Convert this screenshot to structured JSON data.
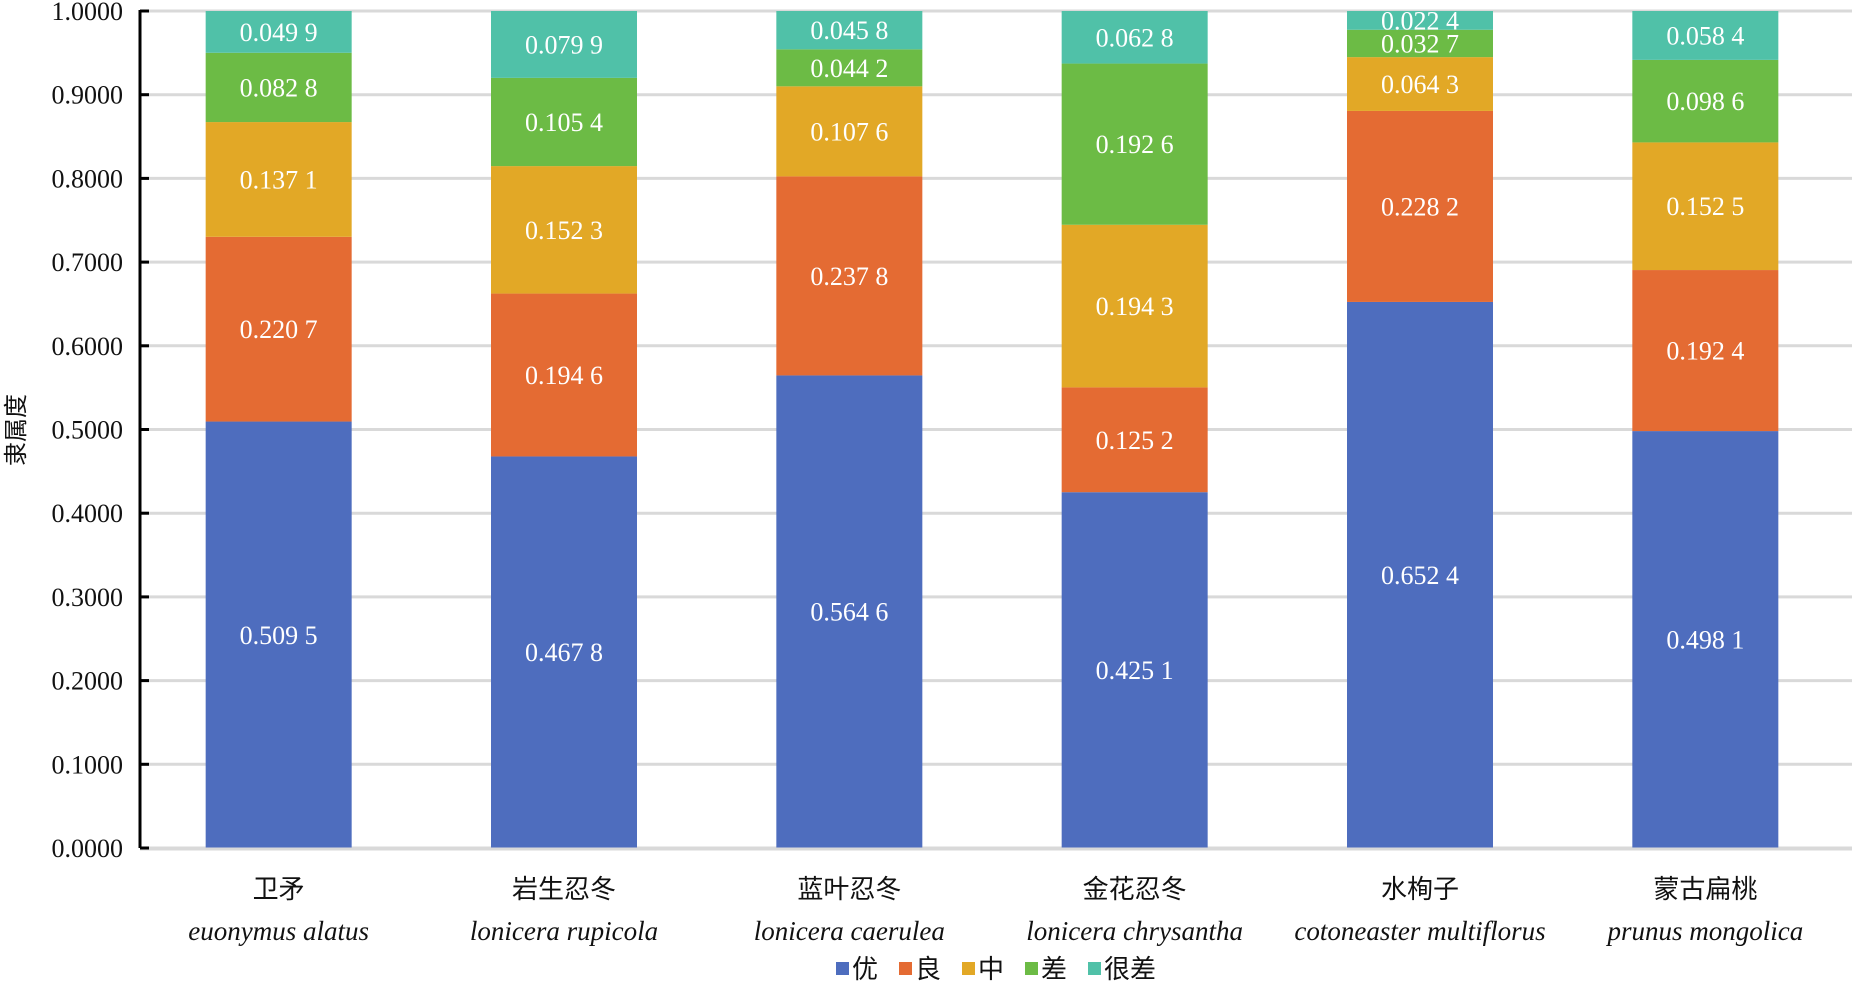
{
  "chart_data": {
    "type": "bar",
    "stacked": true,
    "title": "",
    "xlabel": "",
    "ylabel": "隶属度",
    "ylim": [
      0,
      1
    ],
    "yticks": [
      "0.0000",
      "0.1000",
      "0.2000",
      "0.3000",
      "0.4000",
      "0.5000",
      "0.6000",
      "0.7000",
      "0.8000",
      "0.9000",
      "1.0000"
    ],
    "grid": true,
    "legend_position": "bottom",
    "categories": [
      {
        "cn": "卫矛",
        "latin": "euonymus alatus"
      },
      {
        "cn": "岩生忍冬",
        "latin": "lonicera rupicola"
      },
      {
        "cn": "蓝叶忍冬",
        "latin": "lonicera caerulea"
      },
      {
        "cn": "金花忍冬",
        "latin": "lonicera chrysantha"
      },
      {
        "cn": "水栒子",
        "latin": "cotoneaster multiflorus"
      },
      {
        "cn": "蒙古扁桃",
        "latin": "prunus mongolica"
      }
    ],
    "series": [
      {
        "name": "优",
        "color": "#4E6DBE",
        "values": [
          0.5095,
          0.4678,
          0.5646,
          0.4251,
          0.6524,
          0.4981
        ],
        "labels": [
          "0.509 5",
          "0.467 8",
          "0.564 6",
          "0.425 1",
          "0.652 4",
          "0.498 1"
        ]
      },
      {
        "name": "良",
        "color": "#E46B33",
        "values": [
          0.2207,
          0.1946,
          0.2378,
          0.1252,
          0.2282,
          0.1924
        ],
        "labels": [
          "0.220 7",
          "0.194 6",
          "0.237 8",
          "0.125 2",
          "0.228 2",
          "0.192 4"
        ]
      },
      {
        "name": "中",
        "color": "#E2A826",
        "values": [
          0.1371,
          0.1523,
          0.1076,
          0.1943,
          0.0643,
          0.1525
        ],
        "labels": [
          "0.137 1",
          "0.152 3",
          "0.107 6",
          "0.194 3",
          "0.064 3",
          "0.152 5"
        ]
      },
      {
        "name": "差",
        "color": "#6CBB45",
        "values": [
          0.0828,
          0.1054,
          0.0442,
          0.1926,
          0.0327,
          0.0986
        ],
        "labels": [
          "0.082 8",
          "0.105 4",
          "0.044 2",
          "0.192 6",
          "0.032 7",
          "0.098 6"
        ]
      },
      {
        "name": "很差",
        "color": "#50C1A8",
        "values": [
          0.0499,
          0.0799,
          0.0458,
          0.0628,
          0.0224,
          0.0584
        ],
        "labels": [
          "0.049 9",
          "0.079 9",
          "0.045 8",
          "0.062 8",
          "0.022 4",
          "0.058 4"
        ]
      }
    ]
  }
}
